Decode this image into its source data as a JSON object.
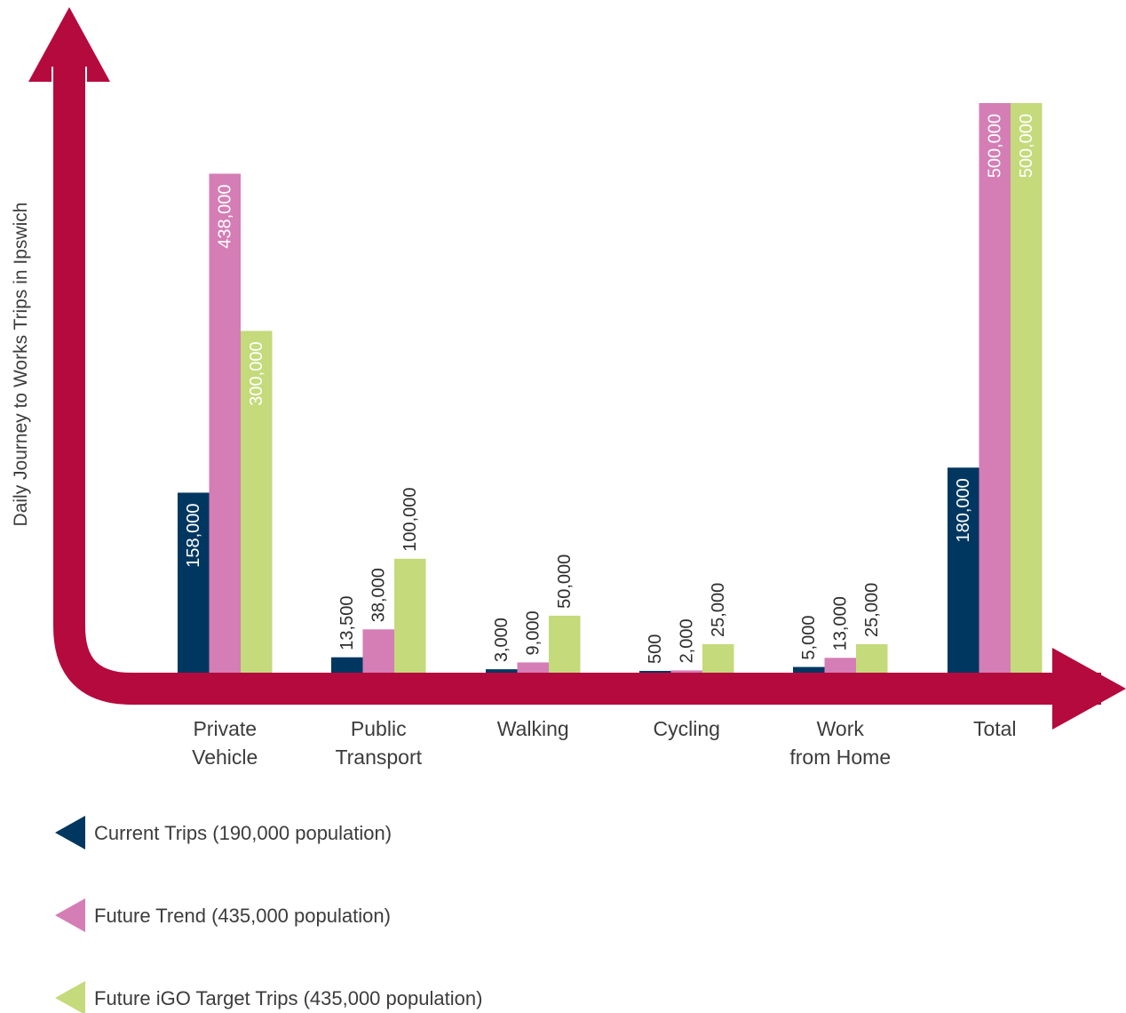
{
  "chart_data": {
    "type": "bar",
    "ylabel": "Daily Journey to Works Trips in Ipswich",
    "categories": [
      [
        "Private",
        "Vehicle"
      ],
      [
        "Public",
        "Transport"
      ],
      [
        "Walking"
      ],
      [
        "Cycling"
      ],
      [
        "Work",
        "from Home"
      ],
      [
        "Total"
      ]
    ],
    "series": [
      {
        "name": "Current Trips (190,000 population)",
        "color": "#003761",
        "values": [
          158000,
          13500,
          3000,
          500,
          5000,
          180000
        ],
        "labels": [
          "158,000",
          "13,500",
          "3,000",
          "500",
          "5,000",
          "180,000"
        ]
      },
      {
        "name": "Future Trend (435,000 population)",
        "color": "#d57db5",
        "values": [
          438000,
          38000,
          9000,
          2000,
          13000,
          500000
        ],
        "labels": [
          "438,000",
          "38,000",
          "9,000",
          "2,000",
          "13,000",
          "500,000"
        ]
      },
      {
        "name": "Future iGO Target Trips (435,000 population)",
        "color": "#c4da7b",
        "values": [
          300000,
          100000,
          50000,
          25000,
          25000,
          500000
        ],
        "labels": [
          "300,000",
          "100,000",
          "50,000",
          "25,000",
          "25,000",
          "500,000"
        ]
      }
    ],
    "axis_color": "#b50a3d",
    "legend_position": "bottom-left"
  }
}
